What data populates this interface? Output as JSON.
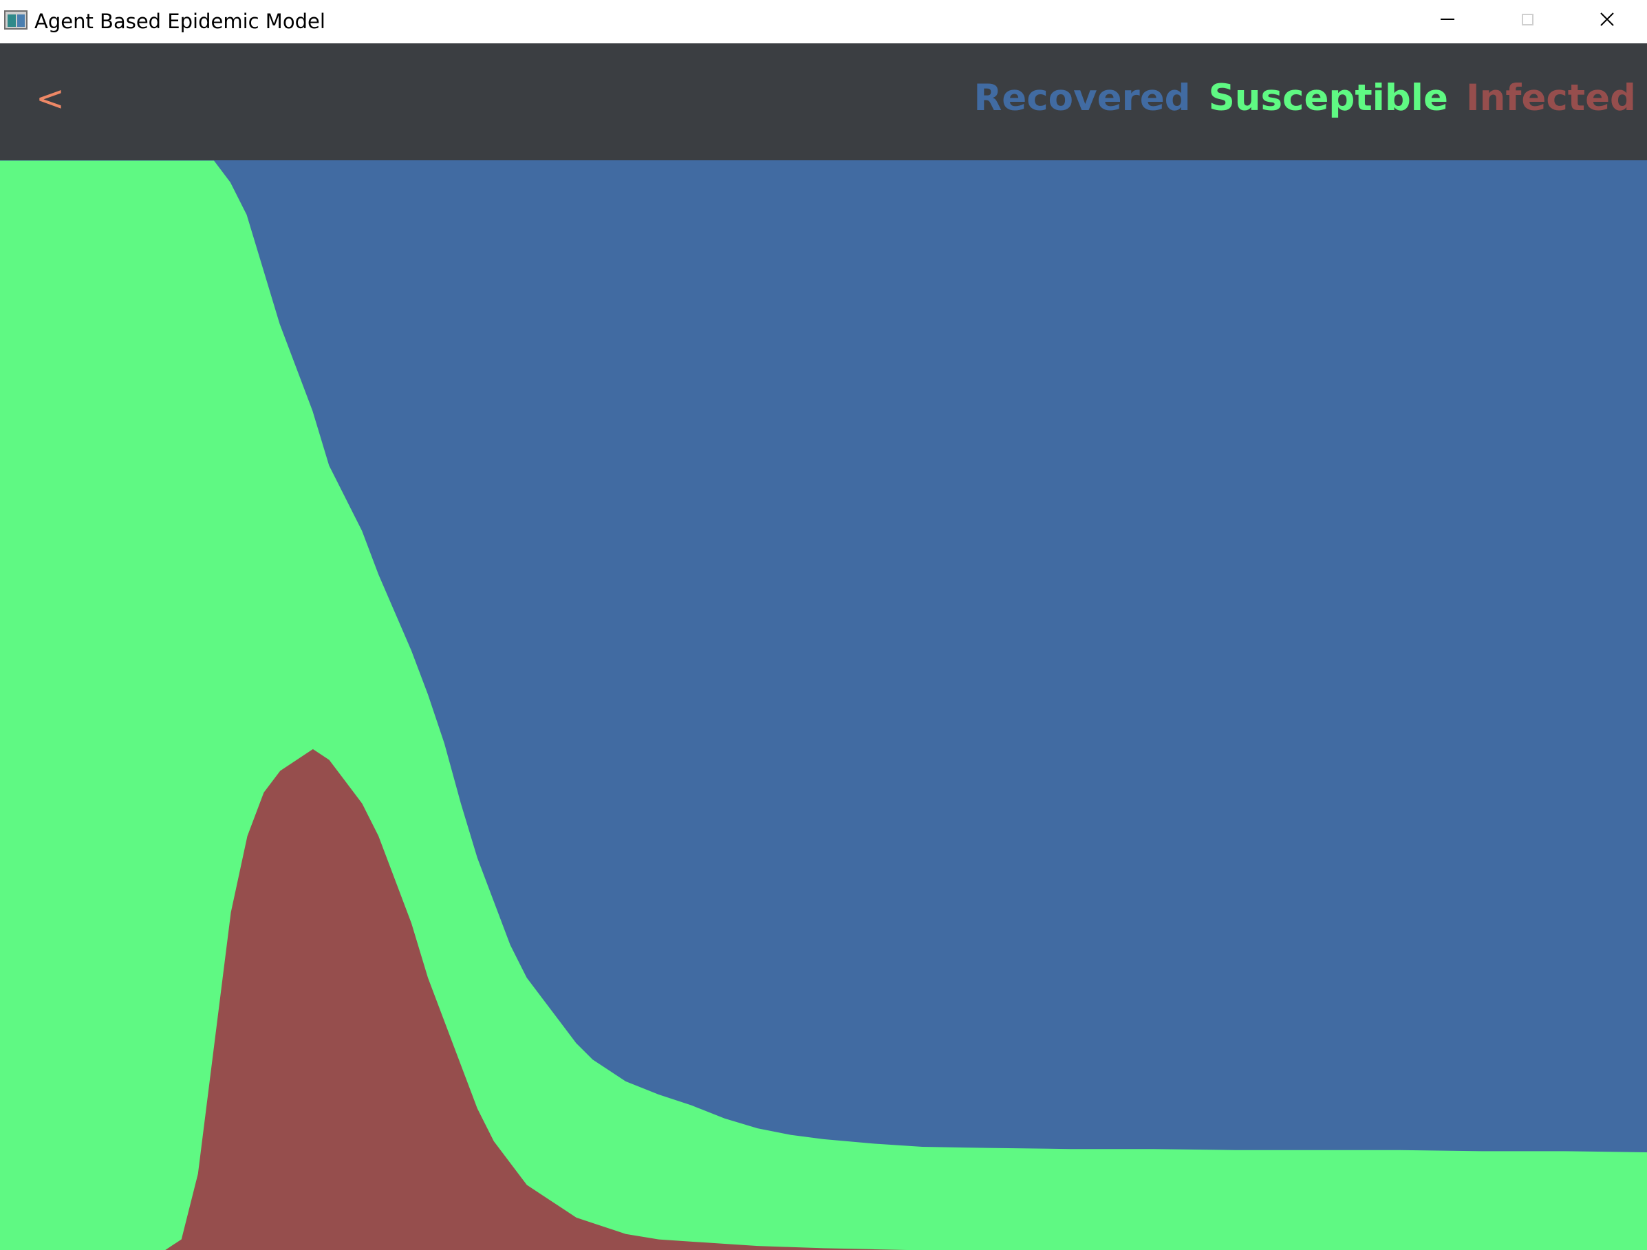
{
  "window": {
    "title": "Agent Based Epidemic Model",
    "app_icon": "app-window-icon",
    "controls": [
      "minimize-icon",
      "maximize-icon",
      "close-icon"
    ]
  },
  "header": {
    "back_label": "<",
    "back_color": "#ee8866",
    "background": "#3b3e42",
    "legend": [
      {
        "label": "Recovered",
        "color": "#416ba2"
      },
      {
        "label": "Susceptible",
        "color": "#5ff983"
      },
      {
        "label": "Infected",
        "color": "#964e4d"
      }
    ]
  },
  "chart_data": {
    "type": "area",
    "stacking": "100% stacked",
    "title": "",
    "xlabel": "",
    "ylabel": "",
    "ylim": [
      0,
      1
    ],
    "x": [
      0,
      4,
      8,
      10,
      11,
      12,
      13,
      14,
      15,
      16,
      17,
      18,
      19,
      20,
      21,
      22,
      23,
      24,
      25,
      26,
      27,
      28,
      29,
      30,
      31,
      32,
      33,
      34,
      35,
      36,
      38,
      40,
      42,
      44,
      46,
      48,
      50,
      53,
      56,
      60,
      65,
      70,
      75,
      80,
      85,
      90,
      95,
      100
    ],
    "series": [
      {
        "name": "Infected",
        "color": "#964e4d",
        "values": [
          0,
          0,
          0,
          0,
          0.01,
          0.07,
          0.19,
          0.31,
          0.38,
          0.42,
          0.44,
          0.45,
          0.46,
          0.45,
          0.43,
          0.41,
          0.38,
          0.34,
          0.3,
          0.25,
          0.21,
          0.17,
          0.13,
          0.1,
          0.08,
          0.06,
          0.05,
          0.04,
          0.03,
          0.025,
          0.015,
          0.01,
          0.008,
          0.006,
          0.004,
          0.003,
          0.002,
          0.001,
          0,
          0,
          0,
          0,
          0,
          0,
          0,
          0,
          0,
          0
        ]
      },
      {
        "name": "Susceptible",
        "color": "#5ff983",
        "values": [
          1,
          1,
          1,
          1,
          0.99,
          0.93,
          0.81,
          0.67,
          0.57,
          0.48,
          0.41,
          0.36,
          0.31,
          0.27,
          0.26,
          0.25,
          0.24,
          0.245,
          0.25,
          0.26,
          0.255,
          0.24,
          0.23,
          0.22,
          0.2,
          0.19,
          0.18,
          0.17,
          0.16,
          0.15,
          0.14,
          0.133,
          0.125,
          0.115,
          0.108,
          0.103,
          0.1,
          0.097,
          0.095,
          0.094,
          0.093,
          0.093,
          0.092,
          0.092,
          0.092,
          0.091,
          0.091,
          0.09
        ]
      },
      {
        "name": "Recovered",
        "color": "#416ba2",
        "values": [
          0,
          0,
          0,
          0,
          0,
          0,
          0,
          0.02,
          0.05,
          0.1,
          0.15,
          0.19,
          0.23,
          0.28,
          0.31,
          0.34,
          0.38,
          0.415,
          0.45,
          0.49,
          0.535,
          0.59,
          0.64,
          0.68,
          0.72,
          0.75,
          0.77,
          0.79,
          0.81,
          0.825,
          0.845,
          0.857,
          0.867,
          0.879,
          0.888,
          0.894,
          0.898,
          0.902,
          0.905,
          0.906,
          0.907,
          0.907,
          0.908,
          0.908,
          0.908,
          0.909,
          0.909,
          0.91
        ]
      }
    ],
    "grid": false,
    "legend_position": "top-right"
  }
}
